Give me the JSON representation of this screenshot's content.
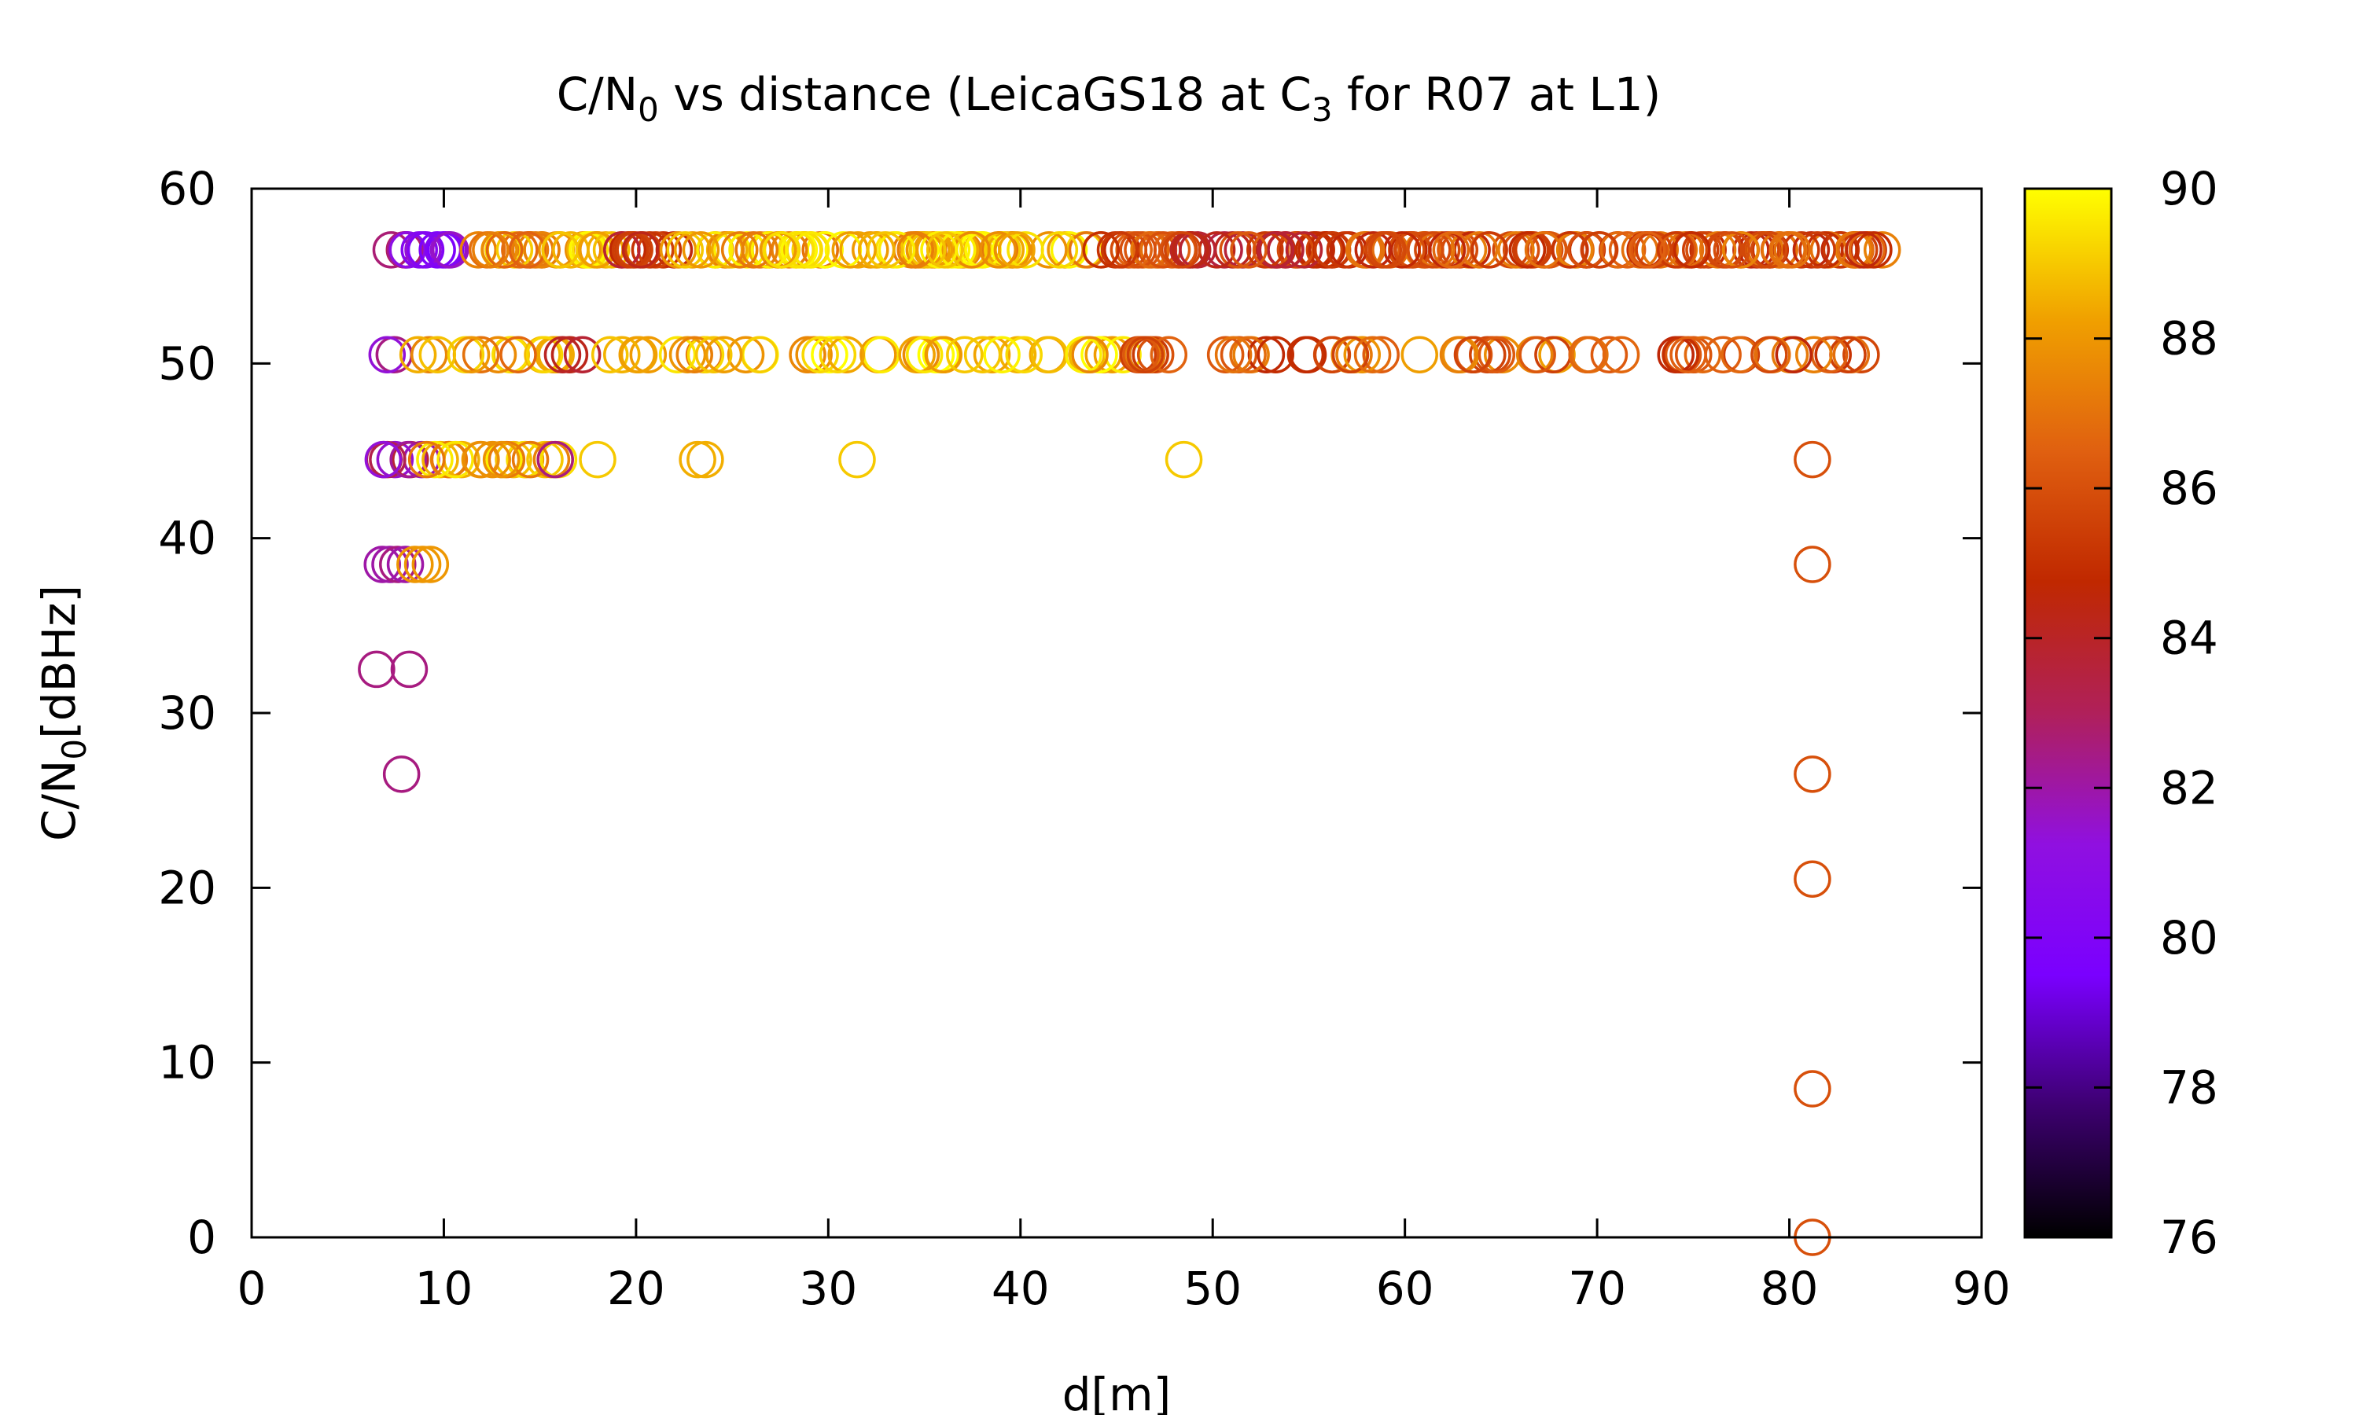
{
  "chart_data": {
    "type": "scatter",
    "title": "C/N",
    "title_sub1": "0",
    "title_mid": " vs distance (LeicaGS18 at C",
    "title_sub2": "3",
    "title_end": " for R07 at L1)",
    "xlabel": "d[m]",
    "ylabel_main": "C/N",
    "ylabel_sub": "0",
    "ylabel_end": "[dBHz]",
    "xlim": [
      0,
      90
    ],
    "ylim": [
      0,
      60
    ],
    "x_ticks": [
      0,
      10,
      20,
      30,
      40,
      50,
      60,
      70,
      80,
      90
    ],
    "y_ticks": [
      0,
      10,
      20,
      30,
      40,
      50,
      60
    ],
    "colorbar": {
      "range": [
        76,
        90
      ],
      "ticks": [
        76,
        78,
        80,
        82,
        84,
        86,
        88,
        90
      ],
      "palette": [
        "#000000",
        "#3d0070",
        "#7a00ff",
        "#9010e0",
        "#b0205a",
        "#c02800",
        "#e06010",
        "#f0a000",
        "#ffff00"
      ]
    },
    "marker": "open-circle",
    "bands": [
      {
        "y": 56.5,
        "segments": [
          [
            7.0,
            8.5,
            81.5
          ],
          [
            8.5,
            10.5,
            80.5
          ],
          [
            11.0,
            16.0,
            88.0
          ],
          [
            16.0,
            19.0,
            88.5
          ],
          [
            19.0,
            22.0,
            84.5
          ],
          [
            22.0,
            44.0,
            88.5
          ],
          [
            44.0,
            48.0,
            86.0
          ],
          [
            48.0,
            56.0,
            85.0
          ],
          [
            56.0,
            70.0,
            86.0
          ],
          [
            70.0,
            85.0,
            86.0
          ]
        ],
        "count": 300
      },
      {
        "y": 50.5,
        "segments": [
          [
            6.8,
            7.5,
            82.0
          ],
          [
            7.5,
            16.0,
            88.0
          ],
          [
            16.0,
            18.0,
            84.0
          ],
          [
            18.0,
            24.0,
            88.5
          ],
          [
            24.0,
            46.0,
            89.0
          ],
          [
            46.0,
            56.0,
            86.0
          ],
          [
            56.0,
            72.0,
            87.0
          ],
          [
            72.0,
            84.0,
            86.0
          ]
        ],
        "count": 130
      },
      {
        "y": 44.5,
        "segments": [
          [
            6.8,
            9.0,
            82.5
          ],
          [
            9.0,
            16.0,
            88.5
          ]
        ],
        "count": 28
      }
    ],
    "points": [
      {
        "x": 15.8,
        "y": 44.5,
        "c": 82.5
      },
      {
        "x": 18.0,
        "y": 44.5,
        "c": 89.0
      },
      {
        "x": 23.2,
        "y": 44.5,
        "c": 88.5
      },
      {
        "x": 23.6,
        "y": 44.5,
        "c": 88.5
      },
      {
        "x": 31.5,
        "y": 44.5,
        "c": 89.0
      },
      {
        "x": 48.5,
        "y": 44.5,
        "c": 89.0
      },
      {
        "x": 81.2,
        "y": 44.5,
        "c": 86.0
      },
      {
        "x": 6.8,
        "y": 38.5,
        "c": 82.0
      },
      {
        "x": 7.2,
        "y": 38.5,
        "c": 82.0
      },
      {
        "x": 7.6,
        "y": 38.5,
        "c": 82.5
      },
      {
        "x": 8.0,
        "y": 38.5,
        "c": 82.0
      },
      {
        "x": 8.5,
        "y": 38.5,
        "c": 88.0
      },
      {
        "x": 8.9,
        "y": 38.5,
        "c": 88.0
      },
      {
        "x": 9.3,
        "y": 38.5,
        "c": 88.0
      },
      {
        "x": 81.2,
        "y": 38.5,
        "c": 86.0
      },
      {
        "x": 6.5,
        "y": 32.5,
        "c": 82.5
      },
      {
        "x": 8.2,
        "y": 32.5,
        "c": 82.5
      },
      {
        "x": 7.8,
        "y": 26.5,
        "c": 82.5
      },
      {
        "x": 81.2,
        "y": 26.5,
        "c": 86.0
      },
      {
        "x": 81.2,
        "y": 20.5,
        "c": 86.0
      },
      {
        "x": 81.2,
        "y": 8.5,
        "c": 86.0
      },
      {
        "x": 81.2,
        "y": 0.0,
        "c": 86.0
      }
    ]
  }
}
